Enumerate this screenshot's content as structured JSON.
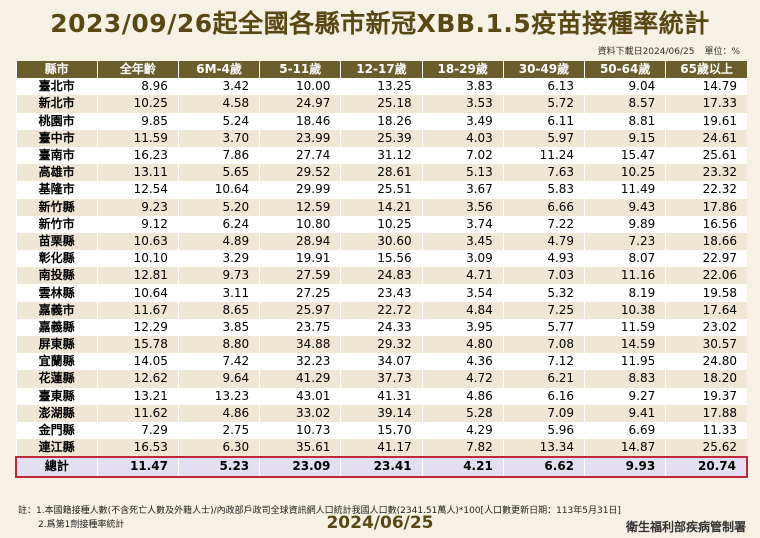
{
  "header": {
    "title": "2023/09/26起全國各縣市新冠XBB.1.5疫苗接種率統計",
    "source": "資料下載日2024/06/25",
    "unit": "單位：%"
  },
  "table": {
    "columns": [
      "縣市",
      "全年齡",
      "6M-4歲",
      "5-11歲",
      "12-17歲",
      "18-29歲",
      "30-49歲",
      "50-64歲",
      "65歲以上"
    ],
    "rows": [
      [
        "臺北市",
        "8.96",
        "3.42",
        "10.00",
        "13.25",
        "3.83",
        "6.13",
        "9.04",
        "14.79"
      ],
      [
        "新北市",
        "10.25",
        "4.58",
        "24.97",
        "25.18",
        "3.53",
        "5.72",
        "8.57",
        "17.33"
      ],
      [
        "桃園市",
        "9.85",
        "5.24",
        "18.46",
        "18.26",
        "3.49",
        "6.11",
        "8.81",
        "19.61"
      ],
      [
        "臺中市",
        "11.59",
        "3.70",
        "23.99",
        "25.39",
        "4.03",
        "5.97",
        "9.15",
        "24.61"
      ],
      [
        "臺南市",
        "16.23",
        "7.86",
        "27.74",
        "31.12",
        "7.02",
        "11.24",
        "15.47",
        "25.61"
      ],
      [
        "高雄市",
        "13.11",
        "5.65",
        "29.52",
        "28.61",
        "5.13",
        "7.63",
        "10.25",
        "23.32"
      ],
      [
        "基隆市",
        "12.54",
        "10.64",
        "29.99",
        "25.51",
        "3.67",
        "5.83",
        "11.49",
        "22.32"
      ],
      [
        "新竹縣",
        "9.23",
        "5.20",
        "12.59",
        "14.21",
        "3.56",
        "6.66",
        "9.43",
        "17.86"
      ],
      [
        "新竹市",
        "9.12",
        "6.24",
        "10.80",
        "10.25",
        "3.74",
        "7.22",
        "9.89",
        "16.56"
      ],
      [
        "苗栗縣",
        "10.63",
        "4.89",
        "28.94",
        "30.60",
        "3.45",
        "4.79",
        "7.23",
        "18.66"
      ],
      [
        "彰化縣",
        "10.10",
        "3.29",
        "19.91",
        "15.56",
        "3.09",
        "4.93",
        "8.07",
        "22.97"
      ],
      [
        "南投縣",
        "12.81",
        "9.73",
        "27.59",
        "24.83",
        "4.71",
        "7.03",
        "11.16",
        "22.06"
      ],
      [
        "雲林縣",
        "10.64",
        "3.11",
        "27.25",
        "23.43",
        "3.54",
        "5.32",
        "8.19",
        "19.58"
      ],
      [
        "嘉義市",
        "11.67",
        "8.65",
        "25.97",
        "22.72",
        "4.84",
        "7.25",
        "10.38",
        "17.64"
      ],
      [
        "嘉義縣",
        "12.29",
        "3.85",
        "23.75",
        "24.33",
        "3.95",
        "5.77",
        "11.59",
        "23.02"
      ],
      [
        "屏東縣",
        "15.78",
        "8.80",
        "34.88",
        "29.32",
        "4.80",
        "7.08",
        "14.59",
        "30.57"
      ],
      [
        "宜蘭縣",
        "14.05",
        "7.42",
        "32.23",
        "34.07",
        "4.36",
        "7.12",
        "11.95",
        "24.80"
      ],
      [
        "花蓮縣",
        "12.62",
        "9.64",
        "41.29",
        "37.73",
        "4.72",
        "6.21",
        "8.83",
        "18.20"
      ],
      [
        "臺東縣",
        "13.21",
        "13.23",
        "43.01",
        "41.31",
        "4.86",
        "6.16",
        "9.27",
        "19.37"
      ],
      [
        "澎湖縣",
        "11.62",
        "4.86",
        "33.02",
        "39.14",
        "5.28",
        "7.09",
        "9.41",
        "17.88"
      ],
      [
        "金門縣",
        "7.29",
        "2.75",
        "10.73",
        "15.70",
        "4.29",
        "5.96",
        "6.69",
        "11.33"
      ],
      [
        "連江縣",
        "16.53",
        "6.30",
        "35.61",
        "41.17",
        "7.82",
        "13.34",
        "14.87",
        "25.62"
      ]
    ],
    "total": [
      "總計",
      "11.47",
      "5.23",
      "23.09",
      "23.41",
      "4.21",
      "6.62",
      "9.93",
      "20.74"
    ]
  },
  "footer": {
    "note1": "註：1.本國籍接種人數(不含死亡人數及外籍人士)/內政部戶政司全球資訊網人口統計我國人口數(2341.51萬人)*100[人口數更新日期：113年5月31日]",
    "note2": "2.爲第1劑接種率統計",
    "date": "2024/06/25",
    "org": "衛生福利部疾病管制署"
  }
}
